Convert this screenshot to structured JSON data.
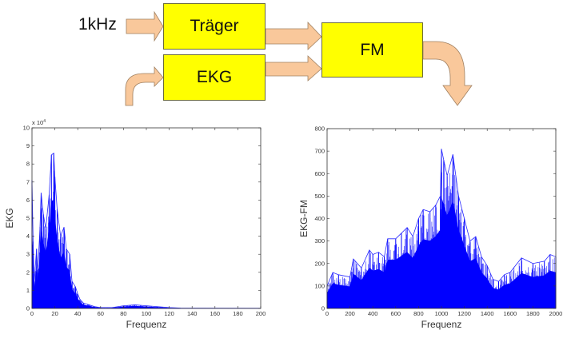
{
  "diagram": {
    "input_label": "1kHz",
    "boxes": {
      "carrier": "Träger",
      "ecg": "EKG",
      "fm": "FM"
    },
    "colors": {
      "box_fill": "#ffff00",
      "arrow_fill": "#f9c89b",
      "arrow_stroke": "#a08060",
      "series": "#0000ff"
    }
  },
  "chart_data": [
    {
      "type": "line",
      "xlabel": "Frequenz",
      "ylabel": "EKG",
      "y_multiplier": "x 10",
      "y_exponent": "4",
      "xlim": [
        0,
        200
      ],
      "ylim": [
        0,
        10
      ],
      "xticks": [
        "0",
        "20",
        "40",
        "60",
        "80",
        "100",
        "120",
        "140",
        "160",
        "180",
        "200"
      ],
      "yticks": [
        "0",
        "1",
        "2",
        "3",
        "4",
        "5",
        "6",
        "7",
        "8",
        "9",
        "10"
      ],
      "grid": false,
      "x": [
        0,
        1,
        2,
        4,
        5,
        7,
        8,
        10,
        12,
        15,
        17,
        19,
        20,
        22,
        25,
        28,
        30,
        33,
        35,
        38,
        40,
        42,
        45,
        50,
        55,
        60,
        70,
        80,
        90,
        100,
        110,
        120,
        130,
        200
      ],
      "y": [
        7.1,
        3.7,
        1.5,
        3.3,
        2.0,
        4.5,
        6.4,
        5.2,
        4.4,
        6.3,
        8.5,
        8.6,
        7.3,
        5.5,
        4.0,
        4.5,
        3.3,
        3.0,
        1.5,
        1.2,
        0.8,
        0.5,
        0.3,
        0.2,
        0.1,
        0.05,
        0.05,
        0.15,
        0.2,
        0.15,
        0.1,
        0.05,
        0.02,
        0.01
      ]
    },
    {
      "type": "line",
      "xlabel": "Frequenz",
      "ylabel": "EKG-FM",
      "xlim": [
        0,
        2000
      ],
      "ylim": [
        0,
        800
      ],
      "xticks": [
        "0",
        "200",
        "400",
        "600",
        "800",
        "1000",
        "1200",
        "1400",
        "1600",
        "1800",
        "2000"
      ],
      "yticks": [
        "0",
        "100",
        "200",
        "300",
        "400",
        "500",
        "600",
        "700",
        "800"
      ],
      "grid": false,
      "x": [
        0,
        50,
        100,
        200,
        230,
        300,
        370,
        400,
        450,
        500,
        530,
        600,
        650,
        700,
        750,
        800,
        840,
        900,
        950,
        990,
        1000,
        1020,
        1050,
        1100,
        1150,
        1200,
        1250,
        1300,
        1350,
        1400,
        1450,
        1500,
        1550,
        1600,
        1700,
        1800,
        1900,
        1950,
        2000
      ],
      "y": [
        100,
        160,
        150,
        140,
        220,
        180,
        260,
        240,
        250,
        230,
        310,
        310,
        335,
        360,
        320,
        400,
        440,
        430,
        460,
        500,
        710,
        660,
        590,
        685,
        500,
        400,
        300,
        320,
        230,
        190,
        130,
        120,
        150,
        160,
        225,
        200,
        210,
        240,
        230
      ]
    }
  ]
}
